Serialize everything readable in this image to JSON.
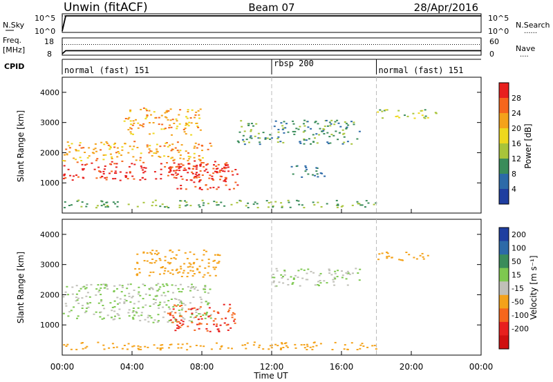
{
  "header": {
    "title": "Unwin (fitACF)",
    "beam": "Beam 07",
    "date": "28/Apr/2016"
  },
  "nsky_panel": {
    "label": "N.Sky",
    "left_ticks": [
      "10^5",
      "10^0"
    ],
    "right_ticks": [
      "10^5",
      "10^0"
    ],
    "right_label": "N.Search",
    "right_legend_glyph": "......"
  },
  "freq_panel": {
    "label_line1": "Freq.",
    "label_line2": "[MHz]",
    "left_ticks": [
      "18",
      "8"
    ],
    "right_ticks": [
      "60",
      "0"
    ],
    "right_label": "Nave",
    "right_legend_glyph": "...."
  },
  "cpid_panel": {
    "label": "CPID",
    "segments": [
      {
        "label": "normal (fast) 151",
        "start_h": 0,
        "end_h": 12
      },
      {
        "label": "rbsp 200",
        "start_h": 12,
        "end_h": 18
      },
      {
        "label": "normal (fast) 151",
        "start_h": 18,
        "end_h": 24
      }
    ]
  },
  "x_axis": {
    "label": "Time UT",
    "ticks": [
      "00:00",
      "04:00",
      "08:00",
      "12:00",
      "16:00",
      "20:00",
      "00:00"
    ],
    "tick_hours": [
      0,
      4,
      8,
      12,
      16,
      20,
      24
    ]
  },
  "power_panel": {
    "ylabel": "Slant Range [km]",
    "yticks": [
      "1000",
      "2000",
      "3000",
      "4000"
    ],
    "ytick_values": [
      1000,
      2000,
      3000,
      4000
    ],
    "colorbar_label": "Power [dB]",
    "colorbar_ticks": [
      "28",
      "24",
      "20",
      "16",
      "12",
      "8",
      "4"
    ],
    "colorbar_colors": [
      "#e8201e",
      "#f6661c",
      "#f4a21a",
      "#eed81e",
      "#a8c43a",
      "#3a8c5a",
      "#2c6aa8",
      "#1f3ea0"
    ]
  },
  "velocity_panel": {
    "ylabel": "Slant Range [km]",
    "yticks": [
      "1000",
      "2000",
      "3000",
      "4000"
    ],
    "ytick_values": [
      1000,
      2000,
      3000,
      4000
    ],
    "colorbar_label": "Velocity [m s⁻¹]",
    "colorbar_ticks": [
      "200",
      "100",
      "50",
      "15",
      "-15",
      "-50",
      "-100",
      "-200"
    ],
    "colorbar_colors": [
      "#1f3ea0",
      "#2c6aa8",
      "#3a8c5a",
      "#7ec850",
      "#c0c0b8",
      "#f4a21a",
      "#f6661c",
      "#e8201e",
      "#d01010"
    ]
  },
  "chart_data": [
    {
      "type": "line",
      "panel": "nsky_nsearch",
      "xlim_hours": [
        0,
        24
      ],
      "series": [
        {
          "name": "N.Sky",
          "x": [
            0,
            0.2,
            1,
            4,
            8,
            12,
            16,
            20,
            24
          ],
          "y": [
            1,
            100000,
            100000,
            100000,
            100000,
            100000,
            100000,
            100000,
            100000
          ]
        },
        {
          "name": "N.Search",
          "x": [
            0,
            24
          ],
          "y": [
            100000,
            100000
          ]
        }
      ]
    },
    {
      "type": "line",
      "panel": "freq_nave",
      "xlim_hours": [
        0,
        24
      ],
      "series": [
        {
          "name": "Freq.",
          "x": [
            0,
            0.2,
            24
          ],
          "y": [
            8,
            10.5,
            10.5
          ]
        },
        {
          "name": "Nave",
          "x": [
            0,
            24
          ],
          "y": [
            45,
            45
          ]
        }
      ]
    },
    {
      "type": "heatmap",
      "panel": "power",
      "x_unit": "hours UT",
      "y_unit": "km",
      "xlim": [
        0,
        24
      ],
      "ylim": [
        0,
        4500
      ],
      "features": [
        {
          "x": [
            0,
            9.5
          ],
          "y": [
            1100,
            1750
          ],
          "value_db": 28
        },
        {
          "x": [
            0,
            8.5
          ],
          "y": [
            1750,
            2400
          ],
          "value_db": 20
        },
        {
          "x": [
            3.5,
            8
          ],
          "y": [
            2600,
            3500
          ],
          "value_db": 20
        },
        {
          "x": [
            6,
            10
          ],
          "y": [
            800,
            1700
          ],
          "value_db": 26
        },
        {
          "x": [
            0,
            18
          ],
          "y": [
            200,
            450
          ],
          "value_db": 10
        },
        {
          "x": [
            10,
            17
          ],
          "y": [
            2300,
            3100
          ],
          "value_db": 8
        },
        {
          "x": [
            13,
            15
          ],
          "y": [
            1200,
            1600
          ],
          "value_db": 6
        },
        {
          "x": [
            18,
            21.5
          ],
          "y": [
            3150,
            3450
          ],
          "value_db": 12
        }
      ]
    },
    {
      "type": "heatmap",
      "panel": "velocity",
      "x_unit": "hours UT",
      "y_unit": "km",
      "xlim": [
        0,
        24
      ],
      "ylim": [
        0,
        4500
      ],
      "features": [
        {
          "x": [
            0,
            8.5
          ],
          "y": [
            1100,
            2400
          ],
          "value_ms": 0
        },
        {
          "x": [
            6,
            10
          ],
          "y": [
            800,
            1700
          ],
          "value_ms": -150
        },
        {
          "x": [
            4,
            9
          ],
          "y": [
            2600,
            3500
          ],
          "value_ms": -40
        },
        {
          "x": [
            0,
            18
          ],
          "y": [
            200,
            450
          ],
          "value_ms": -40
        },
        {
          "x": [
            12,
            17
          ],
          "y": [
            2300,
            2900
          ],
          "value_ms": 0
        },
        {
          "x": [
            18,
            21
          ],
          "y": [
            3150,
            3450
          ],
          "value_ms": -60
        }
      ]
    }
  ]
}
